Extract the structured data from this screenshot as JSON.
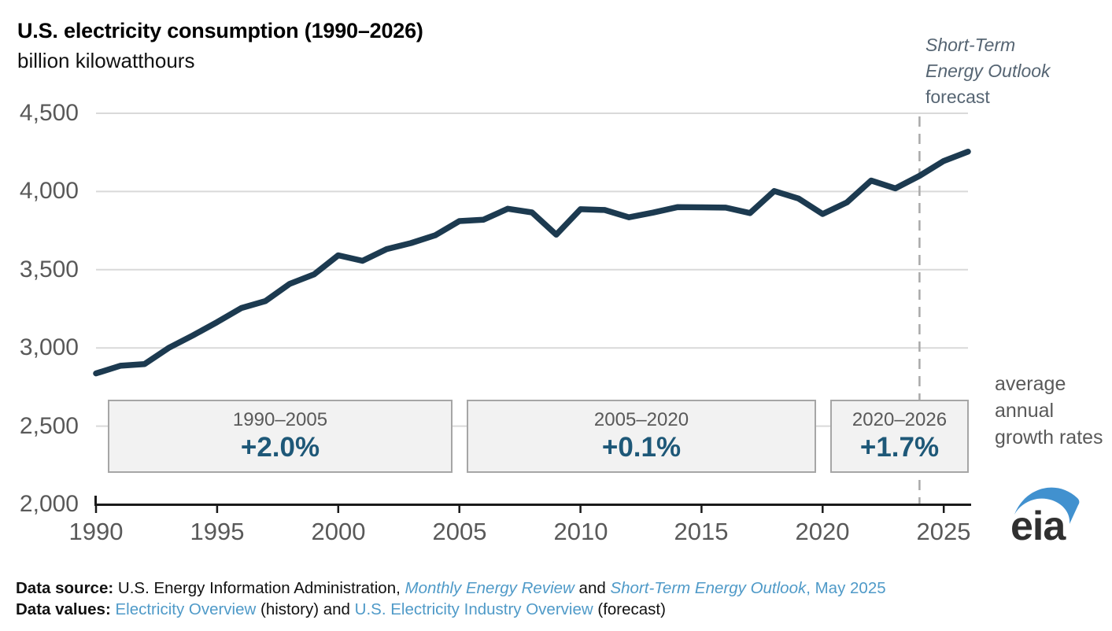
{
  "colors": {
    "line": "#1c3a50",
    "grid": "#d9d9d9",
    "axis": "#1a1a1a",
    "dashed": "#a9a9a9",
    "axis_label": "#595959",
    "rate_text": "#1e5878",
    "link": "#4f9ac8",
    "box_fill": "#f2f2f2",
    "box_border": "#a6a6a6",
    "logo_blue": "#4191cf"
  },
  "chart_data": {
    "type": "line",
    "title": "U.S. electricity consumption (1990–2026)",
    "ylabel": "billion kilowatthours",
    "series_name": "U.S. electricity consumption",
    "x": [
      1990,
      1991,
      1992,
      1993,
      1994,
      1995,
      1996,
      1997,
      1998,
      1999,
      2000,
      2001,
      2002,
      2003,
      2004,
      2005,
      2006,
      2007,
      2008,
      2009,
      2010,
      2011,
      2012,
      2013,
      2014,
      2015,
      2016,
      2017,
      2018,
      2019,
      2020,
      2021,
      2022,
      2023,
      2024,
      2025,
      2026
    ],
    "values": [
      2837,
      2886,
      2897,
      3000,
      3080,
      3165,
      3255,
      3300,
      3410,
      3470,
      3592,
      3557,
      3632,
      3670,
      3720,
      3811,
      3820,
      3890,
      3866,
      3724,
      3887,
      3882,
      3835,
      3865,
      3900,
      3899,
      3897,
      3862,
      4003,
      3955,
      3856,
      3930,
      4070,
      4020,
      4100,
      4195,
      4255
    ],
    "xlim": [
      1990,
      2026
    ],
    "ylim": [
      2000,
      4500
    ],
    "grid": true,
    "xticks": [
      1990,
      1995,
      2000,
      2005,
      2010,
      2015,
      2020,
      2025
    ],
    "yticks": [
      {
        "value": 2000,
        "label": "2,000"
      },
      {
        "value": 2500,
        "label": "2,500"
      },
      {
        "value": 3000,
        "label": "3,000"
      },
      {
        "value": 3500,
        "label": "3,500"
      },
      {
        "value": 4000,
        "label": "4,000"
      },
      {
        "value": 4500,
        "label": "4,500"
      }
    ],
    "forecast_start": 2024
  },
  "annotation": {
    "line1": "Short-Term",
    "line2": "Energy Outlook",
    "line3": "forecast"
  },
  "growth_boxes": [
    {
      "period": "1990–2005",
      "rate": "+2.0%"
    },
    {
      "period": "2005–2020",
      "rate": "+0.1%"
    },
    {
      "period": "2020–2026",
      "rate": "+1.7%"
    }
  ],
  "growth_note": "average annual growth rates",
  "logo": {
    "text": "eia"
  },
  "footer": {
    "source_label": "Data source: ",
    "source_text1": "U.S. Energy Information Administration, ",
    "source_link1": "Monthly Energy Review",
    "source_text2": " and ",
    "source_link2": "Short-Term Energy Outlook",
    "source_text3": ", May 2025",
    "values_label": "Data values: ",
    "values_link1": "Electricity Overview",
    "values_text1": " (history) and ",
    "values_link2": "U.S. Electricity Industry Overview",
    "values_text2": " (forecast)"
  }
}
